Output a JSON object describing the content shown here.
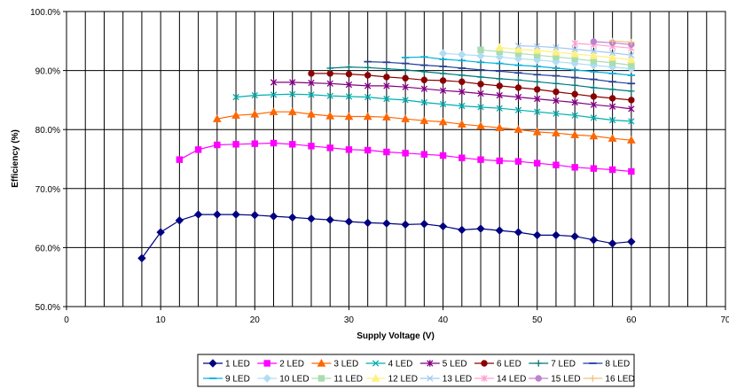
{
  "chart_data": {
    "type": "line",
    "xlabel": "Supply Voltage (V)",
    "ylabel": "Efficiency (%)",
    "xlim": [
      0,
      70
    ],
    "ylim": [
      50,
      100
    ],
    "x_ticks": [
      "0",
      "10",
      "20",
      "30",
      "40",
      "50",
      "60",
      "70"
    ],
    "y_ticks": [
      "50.0%",
      "60.0%",
      "70.0%",
      "80.0%",
      "90.0%",
      "100.0%"
    ],
    "grid": "vertical every 2 V, horizontal every 10%",
    "legend_position": "bottom",
    "series": [
      {
        "name": "1 LED",
        "color": "#000080",
        "marker": "diamond",
        "x": [
          8,
          10,
          12,
          14,
          16,
          18,
          20,
          22,
          24,
          26,
          28,
          30,
          32,
          34,
          36,
          38,
          40,
          42,
          44,
          46,
          48,
          50,
          52,
          54,
          56,
          58,
          60
        ],
        "y": [
          58.2,
          62.6,
          64.6,
          65.6,
          65.6,
          65.6,
          65.5,
          65.3,
          65.1,
          64.9,
          64.7,
          64.4,
          64.2,
          64.1,
          63.9,
          64.0,
          63.6,
          63.0,
          63.2,
          62.9,
          62.6,
          62.1,
          62.1,
          61.9,
          61.3,
          60.7,
          61.0
        ]
      },
      {
        "name": "2 LED",
        "color": "#FF00FF",
        "marker": "square",
        "x": [
          12,
          14,
          16,
          18,
          20,
          22,
          24,
          26,
          28,
          30,
          32,
          34,
          36,
          38,
          40,
          42,
          44,
          46,
          48,
          50,
          52,
          54,
          56,
          58,
          60
        ],
        "y": [
          74.9,
          76.6,
          77.4,
          77.5,
          77.6,
          77.7,
          77.5,
          77.2,
          76.9,
          76.6,
          76.5,
          76.2,
          76.0,
          75.8,
          75.6,
          75.2,
          74.9,
          74.7,
          74.6,
          74.3,
          74.0,
          73.6,
          73.4,
          73.2,
          72.9
        ]
      },
      {
        "name": "3 LED",
        "color": "#FF6600",
        "marker": "triangle",
        "x": [
          16,
          18,
          20,
          22,
          24,
          26,
          28,
          30,
          32,
          34,
          36,
          38,
          40,
          42,
          44,
          46,
          48,
          50,
          52,
          54,
          56,
          58,
          60
        ],
        "y": [
          81.8,
          82.4,
          82.6,
          83.0,
          83.0,
          82.6,
          82.3,
          82.2,
          82.2,
          82.1,
          81.8,
          81.5,
          81.3,
          80.9,
          80.6,
          80.3,
          80.0,
          79.6,
          79.4,
          79.1,
          78.9,
          78.5,
          78.2
        ]
      },
      {
        "name": "4 LED",
        "color": "#00AEAE",
        "marker": "x",
        "x": [
          18,
          20,
          22,
          24,
          26,
          28,
          30,
          32,
          34,
          36,
          38,
          40,
          42,
          44,
          46,
          48,
          50,
          52,
          54,
          56,
          58,
          60
        ],
        "y": [
          85.5,
          85.8,
          85.9,
          86.0,
          85.9,
          85.7,
          85.6,
          85.5,
          85.2,
          85.0,
          84.6,
          84.3,
          84.0,
          83.8,
          83.6,
          83.3,
          83.0,
          82.7,
          82.4,
          82.0,
          81.6,
          81.4
        ]
      },
      {
        "name": "5 LED",
        "color": "#800080",
        "marker": "star",
        "x": [
          22,
          24,
          26,
          28,
          30,
          32,
          34,
          36,
          38,
          40,
          42,
          44,
          46,
          48,
          50,
          52,
          54,
          56,
          58,
          60
        ],
        "y": [
          88.0,
          88.0,
          87.9,
          87.8,
          87.6,
          87.4,
          87.4,
          87.2,
          86.9,
          86.6,
          86.4,
          86.1,
          85.8,
          85.5,
          85.2,
          84.9,
          84.6,
          84.2,
          83.9,
          83.5
        ]
      },
      {
        "name": "6 LED",
        "color": "#8B0000",
        "marker": "circle",
        "x": [
          26,
          28,
          30,
          32,
          34,
          36,
          38,
          40,
          42,
          44,
          46,
          48,
          50,
          52,
          54,
          56,
          58,
          60
        ],
        "y": [
          89.5,
          89.5,
          89.4,
          89.2,
          88.9,
          88.7,
          88.4,
          88.3,
          88.1,
          87.7,
          87.4,
          87.1,
          86.8,
          86.4,
          86.0,
          85.6,
          85.3,
          85.0
        ]
      },
      {
        "name": "7 LED",
        "color": "#007878",
        "marker": "plus",
        "x": [
          28,
          30,
          32,
          34,
          36,
          38,
          40,
          42,
          44,
          46,
          48,
          50,
          52,
          54,
          56,
          58,
          60
        ],
        "y": [
          90.4,
          90.6,
          90.5,
          90.3,
          90.1,
          89.8,
          89.5,
          89.2,
          88.9,
          88.6,
          88.4,
          88.1,
          87.8,
          87.5,
          87.1,
          86.8,
          86.5
        ]
      },
      {
        "name": "8 LED",
        "color": "#1F3F9F",
        "marker": "dash",
        "x": [
          32,
          34,
          36,
          38,
          40,
          42,
          44,
          46,
          48,
          50,
          52,
          54,
          56,
          58,
          60
        ],
        "y": [
          91.5,
          91.4,
          91.2,
          90.9,
          90.7,
          90.4,
          90.1,
          89.9,
          89.6,
          89.3,
          89.1,
          88.8,
          88.5,
          88.1,
          87.8
        ]
      },
      {
        "name": "9 LED",
        "color": "#00B0E0",
        "marker": "dash",
        "x": [
          36,
          38,
          40,
          42,
          44,
          46,
          48,
          50,
          52,
          54,
          56,
          58,
          60
        ],
        "y": [
          92.2,
          92.3,
          91.9,
          91.7,
          91.4,
          91.2,
          90.9,
          90.7,
          90.4,
          90.1,
          89.8,
          89.5,
          89.2
        ]
      },
      {
        "name": "10 LED",
        "color": "#B0DDF5",
        "marker": "diamond",
        "x": [
          40,
          42,
          44,
          46,
          48,
          50,
          52,
          54,
          56,
          58,
          60
        ],
        "y": [
          92.9,
          92.7,
          92.5,
          92.3,
          92.0,
          91.8,
          91.5,
          91.2,
          90.9,
          90.6,
          90.3
        ]
      },
      {
        "name": "11 LED",
        "color": "#A8DDB0",
        "marker": "square",
        "x": [
          44,
          46,
          48,
          50,
          52,
          54,
          56,
          58,
          60
        ],
        "y": [
          93.5,
          93.2,
          92.9,
          92.6,
          92.3,
          92.0,
          91.6,
          91.3,
          90.9
        ]
      },
      {
        "name": "12 LED",
        "color": "#FFF080",
        "marker": "triangle",
        "x": [
          46,
          48,
          50,
          52,
          54,
          56,
          58,
          60
        ],
        "y": [
          93.9,
          93.6,
          93.4,
          93.1,
          92.8,
          92.5,
          92.2,
          91.8
        ]
      },
      {
        "name": "13 LED",
        "color": "#A0C8F0",
        "marker": "x",
        "x": [
          48,
          50,
          52,
          54,
          56,
          58,
          60
        ],
        "y": [
          94.2,
          94.1,
          93.9,
          93.6,
          93.3,
          93.0,
          92.6
        ]
      },
      {
        "name": "14 LED",
        "color": "#FF9FD0",
        "marker": "star",
        "x": [
          54,
          56,
          58,
          60
        ],
        "y": [
          94.6,
          94.4,
          94.1,
          93.8
        ]
      },
      {
        "name": "15 LED",
        "color": "#C080D0",
        "marker": "circle",
        "x": [
          56,
          58,
          60
        ],
        "y": [
          94.9,
          94.7,
          94.4
        ]
      },
      {
        "name": "16 LED",
        "color": "#F0C080",
        "marker": "plus",
        "x": [
          58,
          60
        ],
        "y": [
          95.0,
          94.8
        ]
      }
    ]
  }
}
